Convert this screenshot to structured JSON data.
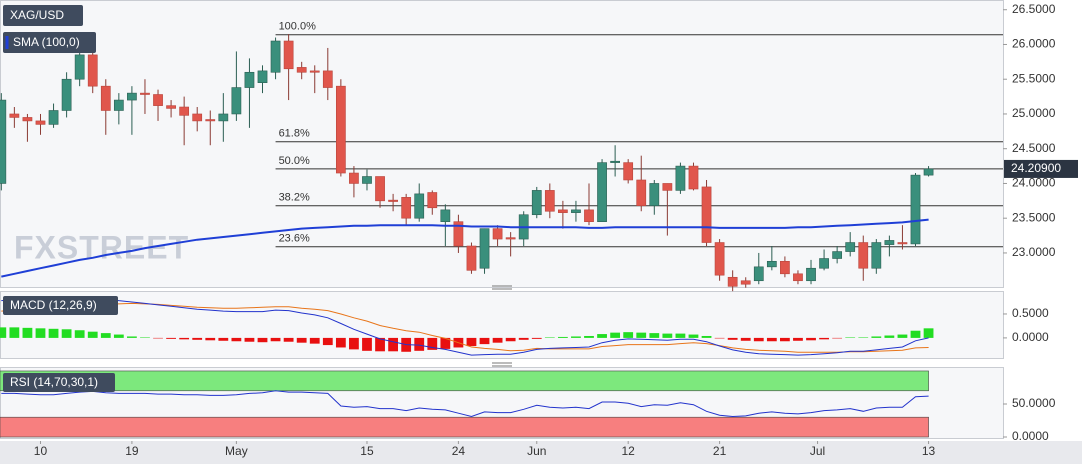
{
  "chart_data": [
    {
      "type": "candlestick",
      "title": "XAG/USD",
      "watermark": "FXSTREET",
      "xlim": [
        -0.1,
        76.7
      ],
      "ylim": [
        22.51,
        26.64
      ],
      "xticks": [
        {
          "value": 3,
          "label": "10"
        },
        {
          "value": 10,
          "label": "19"
        },
        {
          "value": 18,
          "label": "May"
        },
        {
          "value": 28,
          "label": "15"
        },
        {
          "value": 35,
          "label": "24"
        },
        {
          "value": 41,
          "label": "Jun"
        },
        {
          "value": 48,
          "label": "12"
        },
        {
          "value": 55,
          "label": "21"
        },
        {
          "value": 62.5,
          "label": "Jul"
        },
        {
          "value": 71,
          "label": "13"
        }
      ],
      "yticks": [
        {
          "value": 23.0,
          "label": "23.0000"
        },
        {
          "value": 23.5,
          "label": "23.5000"
        },
        {
          "value": 24.0,
          "label": "24.0000"
        },
        {
          "value": 24.5,
          "label": "24.5000"
        },
        {
          "value": 25.0,
          "label": "25.0000"
        },
        {
          "value": 25.5,
          "label": "25.5000"
        },
        {
          "value": 26.0,
          "label": "26.0000"
        },
        {
          "value": 26.5,
          "label": "26.5000"
        }
      ],
      "up_color": "#3a8f7c",
      "down_color": "#e0564c",
      "open": [
        24.0,
        25.0,
        24.95,
        24.9,
        24.85,
        25.05,
        25.5,
        25.85,
        25.4,
        25.05,
        25.2,
        25.3,
        25.28,
        25.12,
        25.1,
        25.0,
        24.92,
        24.9,
        25.0,
        25.38,
        25.45,
        25.6,
        26.05,
        25.67,
        25.62,
        25.62,
        25.4,
        24.15,
        24.0,
        24.1,
        23.76,
        23.8,
        23.5,
        23.87,
        23.45,
        23.45,
        23.1,
        22.78,
        23.35,
        23.22,
        23.2,
        23.55,
        23.9,
        23.62,
        23.58,
        23.62,
        23.45,
        24.3,
        24.3,
        24.05,
        23.68,
        24.0,
        23.9,
        24.25,
        23.95,
        23.15,
        22.65,
        22.6,
        22.6,
        22.8,
        22.88,
        22.7,
        22.6,
        22.78,
        22.92,
        23.02,
        23.15,
        22.78,
        23.12,
        23.15,
        23.13,
        24.12
      ],
      "high": [
        25.3,
        25.1,
        25.0,
        25.0,
        25.15,
        25.6,
        26.0,
        26.05,
        25.5,
        25.3,
        25.4,
        25.5,
        25.35,
        25.2,
        25.25,
        25.1,
        25.05,
        25.3,
        25.9,
        25.8,
        25.7,
        26.1,
        26.15,
        25.75,
        25.7,
        25.95,
        25.5,
        24.25,
        24.2,
        24.1,
        23.85,
        23.85,
        24.0,
        23.9,
        23.7,
        23.55,
        23.15,
        23.35,
        23.4,
        23.3,
        23.6,
        23.95,
        24.0,
        23.75,
        23.75,
        24.0,
        24.35,
        24.55,
        24.35,
        24.4,
        24.05,
        24.0,
        24.3,
        24.3,
        24.05,
        23.2,
        22.75,
        22.65,
        23.0,
        23.1,
        22.95,
        22.75,
        22.9,
        23.05,
        23.1,
        23.3,
        23.25,
        23.2,
        23.25,
        23.4,
        24.15,
        24.25
      ],
      "low": [
        23.9,
        24.8,
        24.6,
        24.7,
        24.8,
        24.95,
        25.4,
        25.3,
        24.7,
        24.85,
        24.7,
        25.0,
        24.9,
        24.95,
        24.55,
        24.75,
        24.55,
        24.6,
        24.9,
        24.8,
        25.3,
        25.5,
        25.2,
        25.5,
        25.3,
        25.2,
        24.1,
        23.8,
        23.9,
        23.65,
        23.6,
        23.4,
        23.45,
        23.55,
        23.1,
        23.0,
        22.7,
        22.7,
        23.1,
        22.95,
        23.1,
        23.5,
        23.5,
        23.35,
        23.45,
        23.4,
        23.45,
        24.1,
        24.0,
        23.6,
        23.55,
        23.25,
        23.85,
        23.9,
        23.1,
        22.6,
        22.45,
        22.5,
        22.55,
        22.75,
        22.65,
        22.55,
        22.55,
        22.75,
        22.85,
        22.95,
        22.6,
        22.7,
        22.95,
        23.05,
        23.1,
        24.1
      ],
      "close": [
        25.2,
        24.95,
        24.9,
        24.85,
        25.05,
        25.5,
        25.85,
        25.4,
        25.05,
        25.2,
        25.3,
        25.28,
        25.12,
        25.08,
        24.98,
        24.9,
        24.9,
        25.0,
        25.38,
        25.6,
        25.62,
        26.05,
        25.65,
        25.6,
        25.6,
        25.38,
        24.15,
        24.0,
        24.1,
        23.75,
        23.74,
        23.5,
        23.85,
        23.65,
        23.62,
        23.1,
        22.75,
        23.35,
        23.2,
        23.2,
        23.55,
        23.9,
        23.6,
        23.58,
        23.62,
        23.45,
        24.3,
        24.32,
        24.05,
        23.68,
        24.0,
        23.9,
        24.25,
        23.92,
        23.15,
        22.68,
        22.52,
        22.55,
        22.8,
        22.88,
        22.7,
        22.6,
        22.78,
        22.92,
        23.02,
        23.15,
        22.78,
        23.15,
        23.18,
        23.13,
        24.12,
        24.209
      ],
      "overlays": [
        {
          "name": "SMA (100,0)",
          "color": "#1f3fd6",
          "values": [
            22.66,
            22.7,
            22.74,
            22.78,
            22.82,
            22.86,
            22.9,
            22.93,
            22.97,
            23.0,
            23.03,
            23.07,
            23.1,
            23.13,
            23.16,
            23.19,
            23.21,
            23.23,
            23.25,
            23.27,
            23.29,
            23.31,
            23.33,
            23.35,
            23.36,
            23.37,
            23.38,
            23.39,
            23.39,
            23.4,
            23.4,
            23.4,
            23.4,
            23.4,
            23.39,
            23.39,
            23.38,
            23.38,
            23.38,
            23.37,
            23.37,
            23.37,
            23.37,
            23.37,
            23.37,
            23.36,
            23.36,
            23.37,
            23.37,
            23.37,
            23.37,
            23.37,
            23.37,
            23.37,
            23.37,
            23.36,
            23.36,
            23.36,
            23.36,
            23.36,
            23.36,
            23.37,
            23.37,
            23.38,
            23.39,
            23.4,
            23.41,
            23.42,
            23.43,
            23.44,
            23.46,
            23.48
          ]
        }
      ],
      "fib_start_index": 21,
      "fib_levels": [
        {
          "value": 26.14,
          "label": "100.0%"
        },
        {
          "value": 24.6,
          "label": "61.8%"
        },
        {
          "value": 24.21,
          "label": "50.0%"
        },
        {
          "value": 23.68,
          "label": "38.2%"
        },
        {
          "value": 23.09,
          "label": "23.6%"
        }
      ],
      "last_price": {
        "value": 24.209,
        "label": "24.20900"
      }
    },
    {
      "type": "macd",
      "title": "MACD (12,26,9)",
      "ylim": [
        -0.42,
        0.98
      ],
      "yticks": [
        {
          "value": 0.5,
          "label": "0.5000"
        },
        {
          "value": 0.0,
          "label": "0.0000"
        }
      ],
      "up_color": "#22dd22",
      "down_color": "#e81010",
      "macd_color": "#2233cc",
      "signal_color": "#e8751a",
      "histogram": [
        0.22,
        0.22,
        0.21,
        0.2,
        0.19,
        0.18,
        0.16,
        0.13,
        0.1,
        0.07,
        0.03,
        0.01,
        -0.01,
        -0.02,
        -0.03,
        -0.04,
        -0.05,
        -0.06,
        -0.07,
        -0.08,
        -0.09,
        -0.07,
        -0.08,
        -0.1,
        -0.12,
        -0.15,
        -0.2,
        -0.24,
        -0.27,
        -0.28,
        -0.28,
        -0.29,
        -0.27,
        -0.25,
        -0.23,
        -0.2,
        -0.17,
        -0.13,
        -0.1,
        -0.07,
        -0.04,
        -0.02,
        0.01,
        0.02,
        0.03,
        0.04,
        0.08,
        0.11,
        0.12,
        0.11,
        0.1,
        0.09,
        0.09,
        0.07,
        0.04,
        -0.01,
        -0.04,
        -0.06,
        -0.07,
        -0.07,
        -0.07,
        -0.06,
        -0.05,
        -0.03,
        -0.01,
        0.01,
        0.01,
        0.03,
        0.05,
        0.07,
        0.15,
        0.2
      ],
      "macd": [
        0.78,
        0.8,
        0.81,
        0.82,
        0.83,
        0.84,
        0.85,
        0.85,
        0.82,
        0.78,
        0.75,
        0.72,
        0.69,
        0.66,
        0.63,
        0.6,
        0.58,
        0.56,
        0.55,
        0.55,
        0.55,
        0.58,
        0.57,
        0.52,
        0.48,
        0.42,
        0.3,
        0.18,
        0.08,
        -0.02,
        -0.08,
        -0.14,
        -0.15,
        -0.2,
        -0.24,
        -0.3,
        -0.36,
        -0.35,
        -0.34,
        -0.34,
        -0.3,
        -0.24,
        -0.22,
        -0.21,
        -0.2,
        -0.19,
        -0.1,
        -0.05,
        -0.02,
        -0.03,
        -0.04,
        -0.05,
        -0.03,
        -0.03,
        -0.08,
        -0.17,
        -0.25,
        -0.3,
        -0.33,
        -0.34,
        -0.35,
        -0.36,
        -0.35,
        -0.33,
        -0.31,
        -0.28,
        -0.28,
        -0.25,
        -0.22,
        -0.19,
        -0.06,
        0.0
      ],
      "signal": [
        0.56,
        0.58,
        0.6,
        0.62,
        0.64,
        0.66,
        0.69,
        0.72,
        0.72,
        0.71,
        0.72,
        0.71,
        0.7,
        0.68,
        0.66,
        0.64,
        0.63,
        0.62,
        0.62,
        0.63,
        0.64,
        0.65,
        0.65,
        0.62,
        0.6,
        0.57,
        0.5,
        0.42,
        0.35,
        0.26,
        0.2,
        0.15,
        0.12,
        0.05,
        -0.01,
        -0.1,
        -0.19,
        -0.22,
        -0.24,
        -0.27,
        -0.26,
        -0.22,
        -0.23,
        -0.23,
        -0.23,
        -0.23,
        -0.18,
        -0.16,
        -0.14,
        -0.14,
        -0.14,
        -0.14,
        -0.12,
        -0.1,
        -0.12,
        -0.16,
        -0.21,
        -0.24,
        -0.26,
        -0.27,
        -0.28,
        -0.3,
        -0.3,
        -0.3,
        -0.3,
        -0.29,
        -0.29,
        -0.28,
        -0.27,
        -0.26,
        -0.21,
        -0.2
      ]
    },
    {
      "type": "rsi",
      "title": "RSI (14,70,30,1)",
      "ylim": [
        -1.5,
        104.5
      ],
      "yticks": [
        {
          "value": 50,
          "label": "50.0000"
        },
        {
          "value": 0,
          "label": "0.0000"
        }
      ],
      "color": "#2233cc",
      "bands": [
        {
          "from": 70,
          "to": 100,
          "color": "#7de87d"
        },
        {
          "from": 0,
          "to": 30,
          "color": "#f77f7f"
        }
      ],
      "values": [
        66,
        66,
        65,
        64,
        64,
        66,
        68,
        69,
        67,
        66,
        66,
        66,
        65,
        65,
        64,
        64,
        63,
        63,
        64,
        66,
        67,
        70,
        68,
        68,
        67,
        66,
        47,
        45,
        46,
        43,
        43,
        40,
        44,
        42,
        41,
        36,
        31,
        38,
        37,
        37,
        42,
        48,
        45,
        44,
        45,
        43,
        53,
        53,
        51,
        46,
        49,
        48,
        52,
        49,
        39,
        33,
        31,
        32,
        36,
        38,
        36,
        35,
        37,
        40,
        41,
        43,
        39,
        44,
        45,
        45,
        61,
        62
      ]
    }
  ]
}
